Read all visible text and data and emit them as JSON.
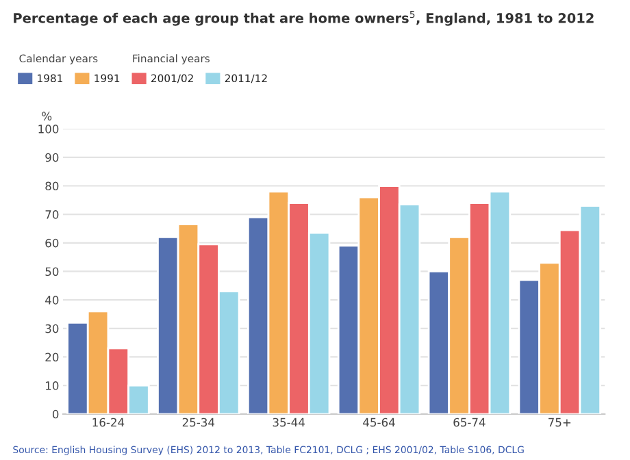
{
  "chart_data": {
    "type": "bar",
    "title": "Percentage of each age group that are home owners$^{5}$, England, 1981 to 2012",
    "ylabel": "%",
    "categories": [
      "16-24",
      "25-34",
      "35-44",
      "45-64",
      "65-74",
      "75+"
    ],
    "series": [
      {
        "name": "1981",
        "color": "#5470b0",
        "values": [
          32,
          62,
          69,
          59,
          50,
          47
        ]
      },
      {
        "name": "1991",
        "color": "#f5ad55",
        "values": [
          36,
          66.5,
          78,
          76,
          62,
          53
        ]
      },
      {
        "name": "2001/02",
        "color": "#ec6466",
        "values": [
          23,
          59.5,
          74,
          80,
          74,
          64.5
        ]
      },
      {
        "name": "2011/12",
        "color": "#98d6e8",
        "values": [
          10,
          43,
          63.5,
          73.5,
          78,
          73
        ]
      }
    ],
    "ylim": [
      0,
      100
    ],
    "yticks": [
      0,
      10,
      20,
      30,
      40,
      50,
      60,
      70,
      80,
      90,
      100
    ],
    "grid": "y",
    "legend": "top left",
    "annotations": [
      "Calendar years",
      "Financial years",
      "Source: English Housing Survey (EHS) 2012 to 2013, Table FC2101, DCLG ; EHS 2001/02, Table S106, DCLG"
    ]
  }
}
